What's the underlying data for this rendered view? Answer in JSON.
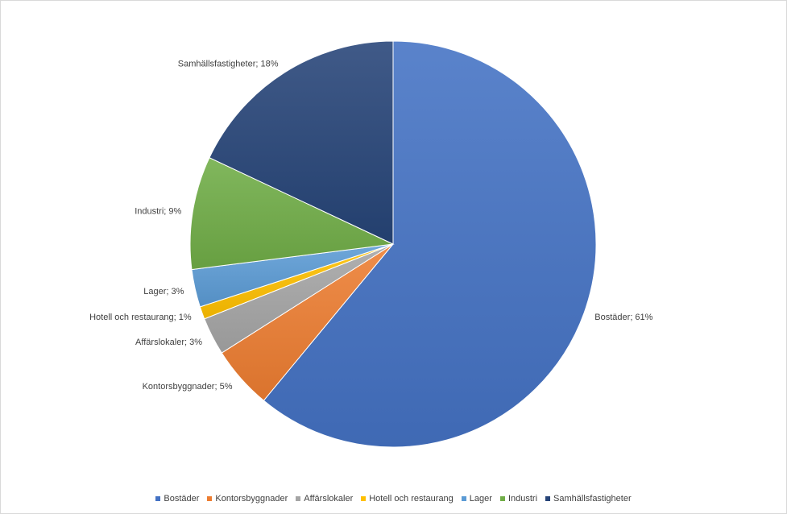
{
  "chart_data": {
    "type": "pie",
    "title": "",
    "categories": [
      "Bostäder",
      "Kontorsbyggnader",
      "Affärslokaler",
      "Hotell och restaurang",
      "Lager",
      "Industri",
      "Samhällsfastigheter"
    ],
    "values": [
      61,
      5,
      3,
      1,
      3,
      9,
      18
    ],
    "data_labels": [
      "Bostäder; 61%",
      "Kontorsbyggnader; 5%",
      "Affärslokaler; 3%",
      "Hotell och restaurang; 1%",
      "Lager; 3%",
      "Industri; 9%",
      "Samhällsfastigheter; 18%"
    ],
    "colors": [
      "#4472c4",
      "#ed7d31",
      "#a5a5a5",
      "#ffc000",
      "#5b9bd5",
      "#70ad47",
      "#264478"
    ],
    "legend_position": "bottom",
    "start_angle": "12 o'clock",
    "direction": "clockwise"
  }
}
